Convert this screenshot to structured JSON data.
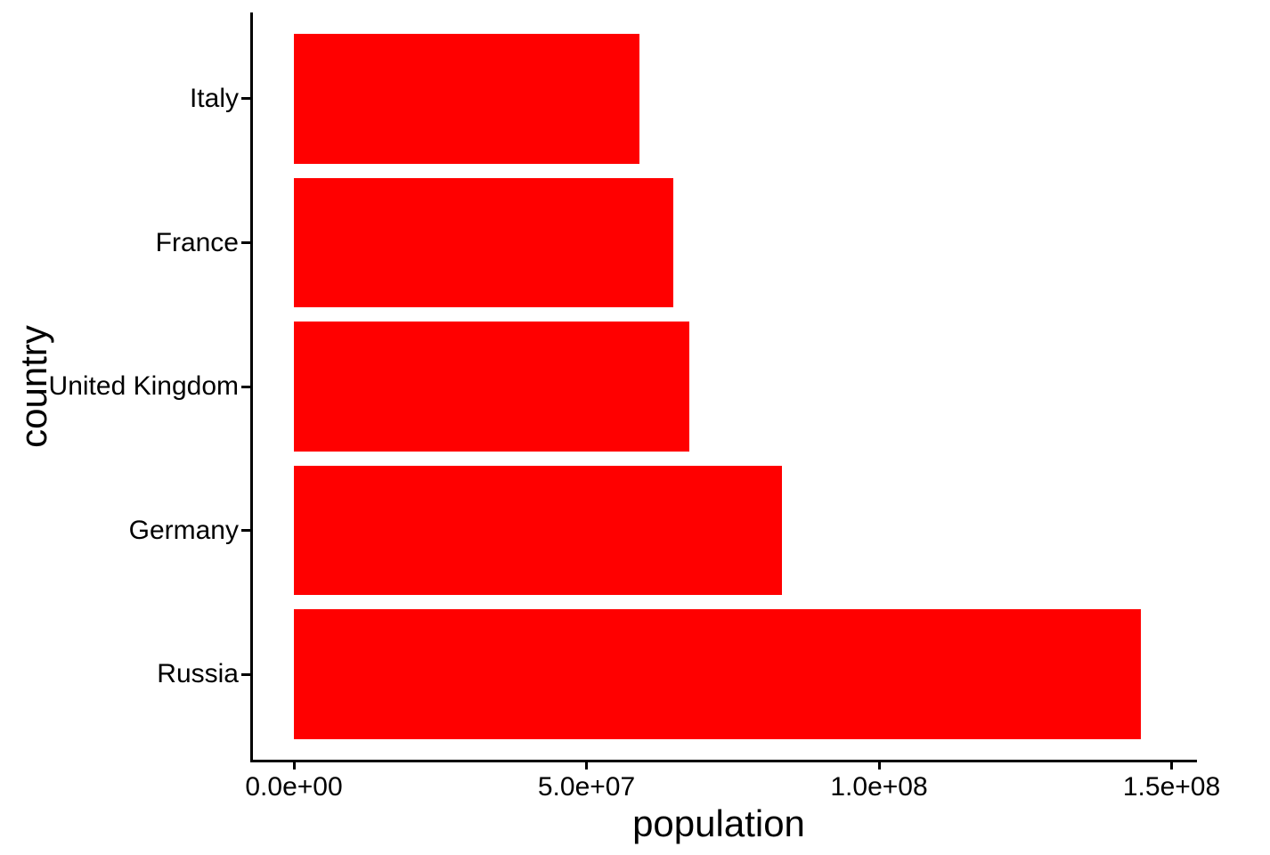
{
  "chart_data": {
    "type": "bar",
    "orientation": "horizontal",
    "title": "",
    "xlabel": "population",
    "ylabel": "country",
    "categories": [
      "Italy",
      "France",
      "United Kingdom",
      "Germany",
      "Russia"
    ],
    "values": [
      59000000,
      64800000,
      67600000,
      83400000,
      144700000
    ],
    "series": [
      {
        "name": "population",
        "values": [
          59000000,
          64800000,
          67600000,
          83400000,
          144700000
        ]
      }
    ],
    "x_ticks": [
      {
        "value": 0,
        "label": "0.0e+00"
      },
      {
        "value": 50000000,
        "label": "5.0e+07"
      },
      {
        "value": 100000000,
        "label": "1.0e+08"
      },
      {
        "value": 150000000,
        "label": "1.5e+08"
      }
    ],
    "xlim": [
      -7200000,
      152000000
    ],
    "grid": false,
    "legend": false,
    "bar_color": "#FF0000",
    "axis_color": "#000000",
    "text_color": "#000000",
    "background": "#FFFFFF"
  }
}
